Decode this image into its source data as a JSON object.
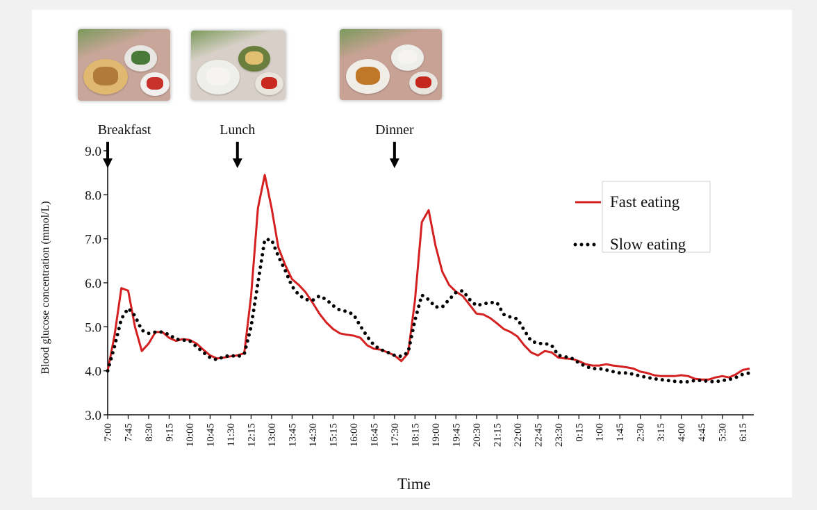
{
  "chart_data": {
    "type": "line",
    "xlabel": "Time",
    "ylabel": "Blood glucose concentration (mmol/L)",
    "ylim": [
      3.0,
      9.0
    ],
    "yticks": [
      "3.0",
      "4.0",
      "5.0",
      "6.0",
      "7.0",
      "8.0",
      "9.0"
    ],
    "x_start": "7:00",
    "x_end": "6:30",
    "x_tick_labels": [
      "7:00",
      "7:45",
      "8:30",
      "9:15",
      "10:00",
      "10:45",
      "11:30",
      "12:15",
      "13:00",
      "13:45",
      "14:30",
      "15:15",
      "16:00",
      "16:45",
      "17:30",
      "18:15",
      "19:00",
      "19:45",
      "20:30",
      "21:15",
      "22:00",
      "22:45",
      "23:30",
      "0:15",
      "1:00",
      "1:45",
      "2:30",
      "3:15",
      "4:00",
      "4:45",
      "5:30",
      "6:15"
    ],
    "legend_position": "top-right",
    "meals": [
      {
        "label": "Breakfast",
        "time": "7:00"
      },
      {
        "label": "Lunch",
        "time": "11:45"
      },
      {
        "label": "Dinner",
        "time": "17:30"
      }
    ],
    "series": [
      {
        "name": "Fast eating",
        "color": "#d42020",
        "style": "solid",
        "points": [
          [
            "7:00",
            4.0
          ],
          [
            "7:15",
            4.8
          ],
          [
            "7:30",
            5.88
          ],
          [
            "7:45",
            5.82
          ],
          [
            "8:00",
            5.0
          ],
          [
            "8:15",
            4.45
          ],
          [
            "8:30",
            4.62
          ],
          [
            "8:45",
            4.88
          ],
          [
            "9:00",
            4.88
          ],
          [
            "9:15",
            4.75
          ],
          [
            "9:30",
            4.68
          ],
          [
            "9:45",
            4.72
          ],
          [
            "10:00",
            4.7
          ],
          [
            "10:15",
            4.62
          ],
          [
            "10:30",
            4.48
          ],
          [
            "10:45",
            4.35
          ],
          [
            "11:00",
            4.28
          ],
          [
            "11:15",
            4.3
          ],
          [
            "11:30",
            4.33
          ],
          [
            "11:45",
            4.35
          ],
          [
            "12:00",
            4.4
          ],
          [
            "12:15",
            5.7
          ],
          [
            "12:30",
            7.7
          ],
          [
            "12:45",
            8.45
          ],
          [
            "13:00",
            7.7
          ],
          [
            "13:15",
            6.8
          ],
          [
            "13:30",
            6.4
          ],
          [
            "13:45",
            6.08
          ],
          [
            "14:00",
            5.95
          ],
          [
            "14:15",
            5.78
          ],
          [
            "14:30",
            5.55
          ],
          [
            "14:45",
            5.3
          ],
          [
            "15:00",
            5.1
          ],
          [
            "15:15",
            4.95
          ],
          [
            "15:30",
            4.85
          ],
          [
            "15:45",
            4.82
          ],
          [
            "16:00",
            4.8
          ],
          [
            "16:15",
            4.75
          ],
          [
            "16:30",
            4.58
          ],
          [
            "16:45",
            4.5
          ],
          [
            "17:00",
            4.48
          ],
          [
            "17:15",
            4.42
          ],
          [
            "17:30",
            4.35
          ],
          [
            "17:45",
            4.22
          ],
          [
            "18:00",
            4.4
          ],
          [
            "18:15",
            5.6
          ],
          [
            "18:30",
            7.38
          ],
          [
            "18:45",
            7.65
          ],
          [
            "19:00",
            6.85
          ],
          [
            "19:15",
            6.25
          ],
          [
            "19:30",
            5.95
          ],
          [
            "19:45",
            5.8
          ],
          [
            "20:00",
            5.7
          ],
          [
            "20:15",
            5.5
          ],
          [
            "20:30",
            5.3
          ],
          [
            "20:45",
            5.28
          ],
          [
            "21:00",
            5.2
          ],
          [
            "21:15",
            5.08
          ],
          [
            "21:30",
            4.95
          ],
          [
            "21:45",
            4.88
          ],
          [
            "22:00",
            4.78
          ],
          [
            "22:15",
            4.58
          ],
          [
            "22:30",
            4.42
          ],
          [
            "22:45",
            4.35
          ],
          [
            "23:00",
            4.45
          ],
          [
            "23:15",
            4.42
          ],
          [
            "23:30",
            4.3
          ],
          [
            "23:45",
            4.28
          ],
          [
            "0:00",
            4.27
          ],
          [
            "0:15",
            4.22
          ],
          [
            "0:30",
            4.15
          ],
          [
            "0:45",
            4.12
          ],
          [
            "1:00",
            4.12
          ],
          [
            "1:15",
            4.15
          ],
          [
            "1:30",
            4.12
          ],
          [
            "1:45",
            4.1
          ],
          [
            "2:00",
            4.08
          ],
          [
            "2:15",
            4.05
          ],
          [
            "2:30",
            3.98
          ],
          [
            "2:45",
            3.95
          ],
          [
            "3:00",
            3.9
          ],
          [
            "3:15",
            3.88
          ],
          [
            "3:30",
            3.88
          ],
          [
            "3:45",
            3.88
          ],
          [
            "4:00",
            3.9
          ],
          [
            "4:15",
            3.88
          ],
          [
            "4:30",
            3.82
          ],
          [
            "4:45",
            3.8
          ],
          [
            "5:00",
            3.8
          ],
          [
            "5:15",
            3.85
          ],
          [
            "5:30",
            3.88
          ],
          [
            "5:45",
            3.85
          ],
          [
            "6:00",
            3.92
          ],
          [
            "6:15",
            4.02
          ],
          [
            "6:30",
            4.05
          ]
        ]
      },
      {
        "name": "Slow eating",
        "color": "#000000",
        "style": "dotted",
        "points": [
          [
            "7:00",
            4.0
          ],
          [
            "7:15",
            4.55
          ],
          [
            "7:30",
            5.18
          ],
          [
            "7:45",
            5.42
          ],
          [
            "8:00",
            5.25
          ],
          [
            "8:15",
            4.92
          ],
          [
            "8:30",
            4.85
          ],
          [
            "8:45",
            4.88
          ],
          [
            "9:00",
            4.88
          ],
          [
            "9:15",
            4.82
          ],
          [
            "9:30",
            4.72
          ],
          [
            "9:45",
            4.7
          ],
          [
            "10:00",
            4.68
          ],
          [
            "10:15",
            4.55
          ],
          [
            "10:30",
            4.42
          ],
          [
            "10:45",
            4.3
          ],
          [
            "11:00",
            4.25
          ],
          [
            "11:15",
            4.32
          ],
          [
            "11:30",
            4.35
          ],
          [
            "11:45",
            4.32
          ],
          [
            "12:00",
            4.38
          ],
          [
            "12:15",
            5.0
          ],
          [
            "12:30",
            6.0
          ],
          [
            "12:45",
            6.98
          ],
          [
            "13:00",
            6.98
          ],
          [
            "13:15",
            6.6
          ],
          [
            "13:30",
            6.28
          ],
          [
            "13:45",
            5.92
          ],
          [
            "14:00",
            5.72
          ],
          [
            "14:15",
            5.62
          ],
          [
            "14:30",
            5.6
          ],
          [
            "14:45",
            5.7
          ],
          [
            "15:00",
            5.62
          ],
          [
            "15:15",
            5.48
          ],
          [
            "15:30",
            5.38
          ],
          [
            "15:45",
            5.35
          ],
          [
            "16:00",
            5.28
          ],
          [
            "16:15",
            5.02
          ],
          [
            "16:30",
            4.78
          ],
          [
            "16:45",
            4.58
          ],
          [
            "17:00",
            4.48
          ],
          [
            "17:15",
            4.42
          ],
          [
            "17:30",
            4.35
          ],
          [
            "17:45",
            4.33
          ],
          [
            "18:00",
            4.42
          ],
          [
            "18:15",
            5.15
          ],
          [
            "18:30",
            5.72
          ],
          [
            "18:45",
            5.62
          ],
          [
            "19:00",
            5.45
          ],
          [
            "19:15",
            5.45
          ],
          [
            "19:30",
            5.62
          ],
          [
            "19:45",
            5.78
          ],
          [
            "20:00",
            5.82
          ],
          [
            "20:15",
            5.62
          ],
          [
            "20:30",
            5.48
          ],
          [
            "20:45",
            5.52
          ],
          [
            "21:00",
            5.55
          ],
          [
            "21:15",
            5.55
          ],
          [
            "21:30",
            5.28
          ],
          [
            "21:45",
            5.22
          ],
          [
            "22:00",
            5.18
          ],
          [
            "22:15",
            4.92
          ],
          [
            "22:30",
            4.68
          ],
          [
            "22:45",
            4.62
          ],
          [
            "23:00",
            4.62
          ],
          [
            "23:15",
            4.58
          ],
          [
            "23:30",
            4.35
          ],
          [
            "23:45",
            4.32
          ],
          [
            "0:00",
            4.28
          ],
          [
            "0:15",
            4.18
          ],
          [
            "0:30",
            4.1
          ],
          [
            "0:45",
            4.05
          ],
          [
            "1:00",
            4.05
          ],
          [
            "1:15",
            4.02
          ],
          [
            "1:30",
            3.98
          ],
          [
            "1:45",
            3.95
          ],
          [
            "2:00",
            3.95
          ],
          [
            "2:15",
            3.92
          ],
          [
            "2:30",
            3.88
          ],
          [
            "2:45",
            3.85
          ],
          [
            "3:00",
            3.82
          ],
          [
            "3:15",
            3.8
          ],
          [
            "3:30",
            3.78
          ],
          [
            "3:45",
            3.76
          ],
          [
            "4:00",
            3.75
          ],
          [
            "4:15",
            3.75
          ],
          [
            "4:30",
            3.78
          ],
          [
            "4:45",
            3.78
          ],
          [
            "5:00",
            3.76
          ],
          [
            "5:15",
            3.75
          ],
          [
            "5:30",
            3.78
          ],
          [
            "5:45",
            3.8
          ],
          [
            "6:00",
            3.85
          ],
          [
            "6:15",
            3.92
          ],
          [
            "6:30",
            3.95
          ]
        ]
      }
    ]
  },
  "photos": [
    {
      "meal": "Breakfast",
      "cloth": "#c9a69a",
      "plates": [
        [
          "#e0b870",
          "#b07a3a"
        ],
        [
          "#e8e6e2",
          "#4a7a3a"
        ],
        [
          "#f2f0ee",
          "#c8302a"
        ]
      ]
    },
    {
      "meal": "Lunch",
      "cloth": "#d8d0c8",
      "plates": [
        [
          "#eeeeea",
          "#f6f4f0"
        ],
        [
          "#6a7f3e",
          "#e0c070"
        ],
        [
          "#e9e4dc",
          "#c82a20"
        ]
      ]
    },
    {
      "meal": "Dinner",
      "cloth": "#c9a296",
      "plates": [
        [
          "#f0ece6",
          "#c07828"
        ],
        [
          "#eeeeea",
          "#f6f4f0"
        ],
        [
          "#e8e4de",
          "#c4281e"
        ]
      ]
    }
  ]
}
